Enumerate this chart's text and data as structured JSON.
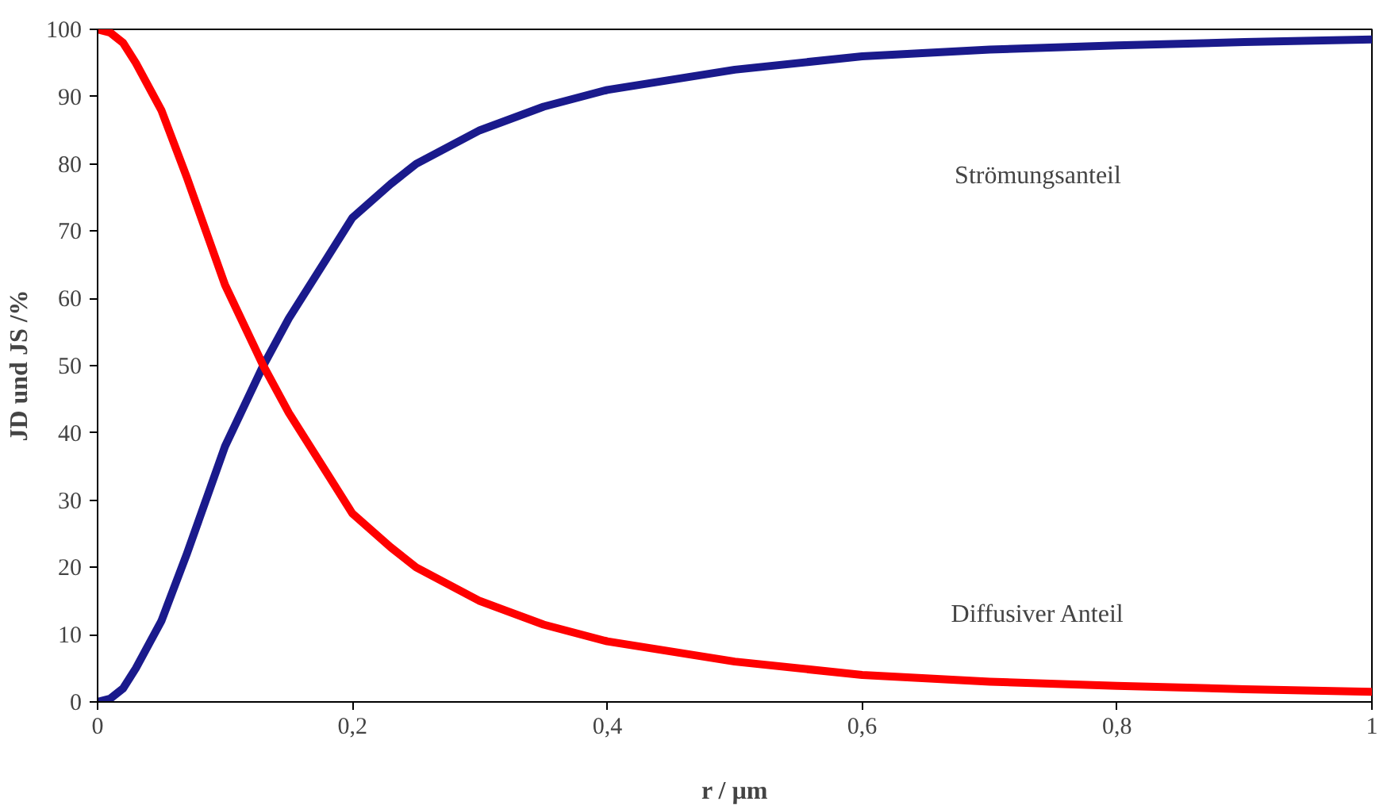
{
  "chart_data": {
    "type": "line",
    "xlabel": "r / µm",
    "ylabel": "JD und JS /%",
    "x": [
      0,
      0.01,
      0.02,
      0.03,
      0.05,
      0.07,
      0.1,
      0.13,
      0.15,
      0.18,
      0.2,
      0.23,
      0.25,
      0.3,
      0.35,
      0.4,
      0.5,
      0.6,
      0.7,
      0.8,
      0.9,
      1.0
    ],
    "series": [
      {
        "color": "#1a1a8c",
        "values": [
          0,
          0.5,
          2,
          5,
          12,
          22,
          38,
          50,
          57,
          66,
          72,
          77,
          80,
          85,
          88.5,
          91,
          94,
          96,
          97,
          97.6,
          98.1,
          98.5
        ]
      },
      {
        "color": "#ff0000",
        "values": [
          100,
          99.5,
          98,
          95,
          88,
          78,
          62,
          50,
          43,
          34,
          28,
          23,
          20,
          15,
          11.5,
          9,
          6,
          4,
          3,
          2.4,
          1.9,
          1.5
        ]
      }
    ],
    "xlim": [
      0,
      1
    ],
    "ylim": [
      0,
      100
    ],
    "xticks": [
      0,
      {
        "value": 0.2,
        "label": "0,2"
      },
      {
        "value": 0.4,
        "label": "0,4"
      },
      {
        "value": 0.6,
        "label": "0,6"
      },
      {
        "value": 0.8,
        "label": "0,8"
      },
      1
    ],
    "yticks": [
      0,
      10,
      20,
      30,
      40,
      50,
      60,
      70,
      80,
      90,
      100
    ],
    "annotations": [
      "Strömungsanteil",
      "Diffusiver Anteil"
    ],
    "grid": false,
    "marker": "none",
    "line_style": "solid"
  }
}
